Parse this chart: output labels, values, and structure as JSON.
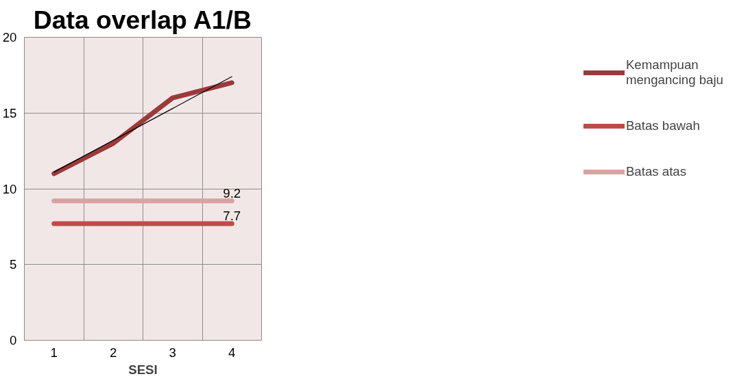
{
  "chart_data": {
    "type": "line",
    "title": "Data overlap A1/B",
    "xlabel": "SESI",
    "categories": [
      "1",
      "2",
      "3",
      "4"
    ],
    "ylim": [
      0,
      20
    ],
    "yticks": [
      0,
      5,
      10,
      15,
      20
    ],
    "grid": true,
    "legend": "right",
    "marker": "none",
    "line_style": "solid",
    "series": [
      {
        "name": "Kemampuan mengancing baju",
        "color": "#9b3a3a",
        "values": [
          11,
          13,
          16,
          17
        ]
      },
      {
        "name": "Batas bawah",
        "color": "#be4b48",
        "values": [
          7.7,
          7.7,
          7.7,
          7.7
        ],
        "value_labels": [
          null,
          null,
          null,
          "7.7"
        ]
      },
      {
        "name": "Batas atas",
        "color": "#d9a3a2",
        "values": [
          9.2,
          9.2,
          9.2,
          9.2
        ],
        "value_labels": [
          null,
          null,
          null,
          "9.2"
        ]
      },
      {
        "type": "line",
        "color": "#000000",
        "values": [
          11.1,
          13.2,
          15.3,
          17.4
        ]
      }
    ]
  }
}
